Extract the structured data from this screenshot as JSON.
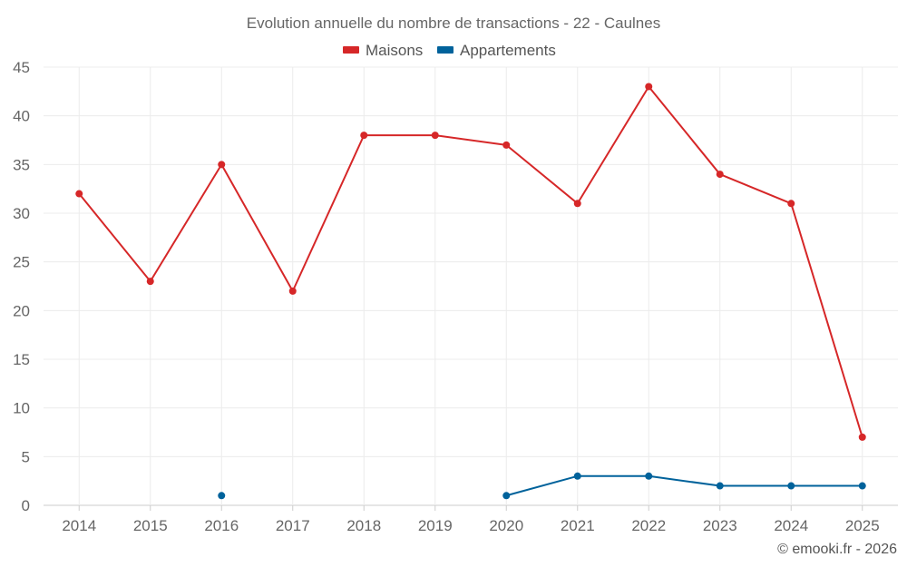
{
  "chart_data": {
    "type": "line",
    "title": "Evolution annuelle du nombre de transactions - 22 - Caulnes",
    "categories": [
      "2014",
      "2015",
      "2016",
      "2017",
      "2018",
      "2019",
      "2020",
      "2021",
      "2022",
      "2023",
      "2024",
      "2025"
    ],
    "series": [
      {
        "name": "Maisons",
        "color": "#d62728",
        "values": [
          32,
          23,
          35,
          22,
          38,
          38,
          37,
          31,
          43,
          34,
          31,
          7
        ]
      },
      {
        "name": "Appartements",
        "color": "#00629b",
        "values": [
          null,
          null,
          1,
          null,
          null,
          null,
          1,
          3,
          3,
          2,
          2,
          2
        ]
      }
    ],
    "ylim": [
      0,
      45
    ],
    "yticks": [
      "0",
      "5",
      "10",
      "15",
      "20",
      "25",
      "30",
      "35",
      "40",
      "45"
    ],
    "grid": true,
    "legend": "top-center",
    "xlabel": "",
    "ylabel": ""
  },
  "footer": {
    "copyright": "© emooki.fr - 2026"
  }
}
